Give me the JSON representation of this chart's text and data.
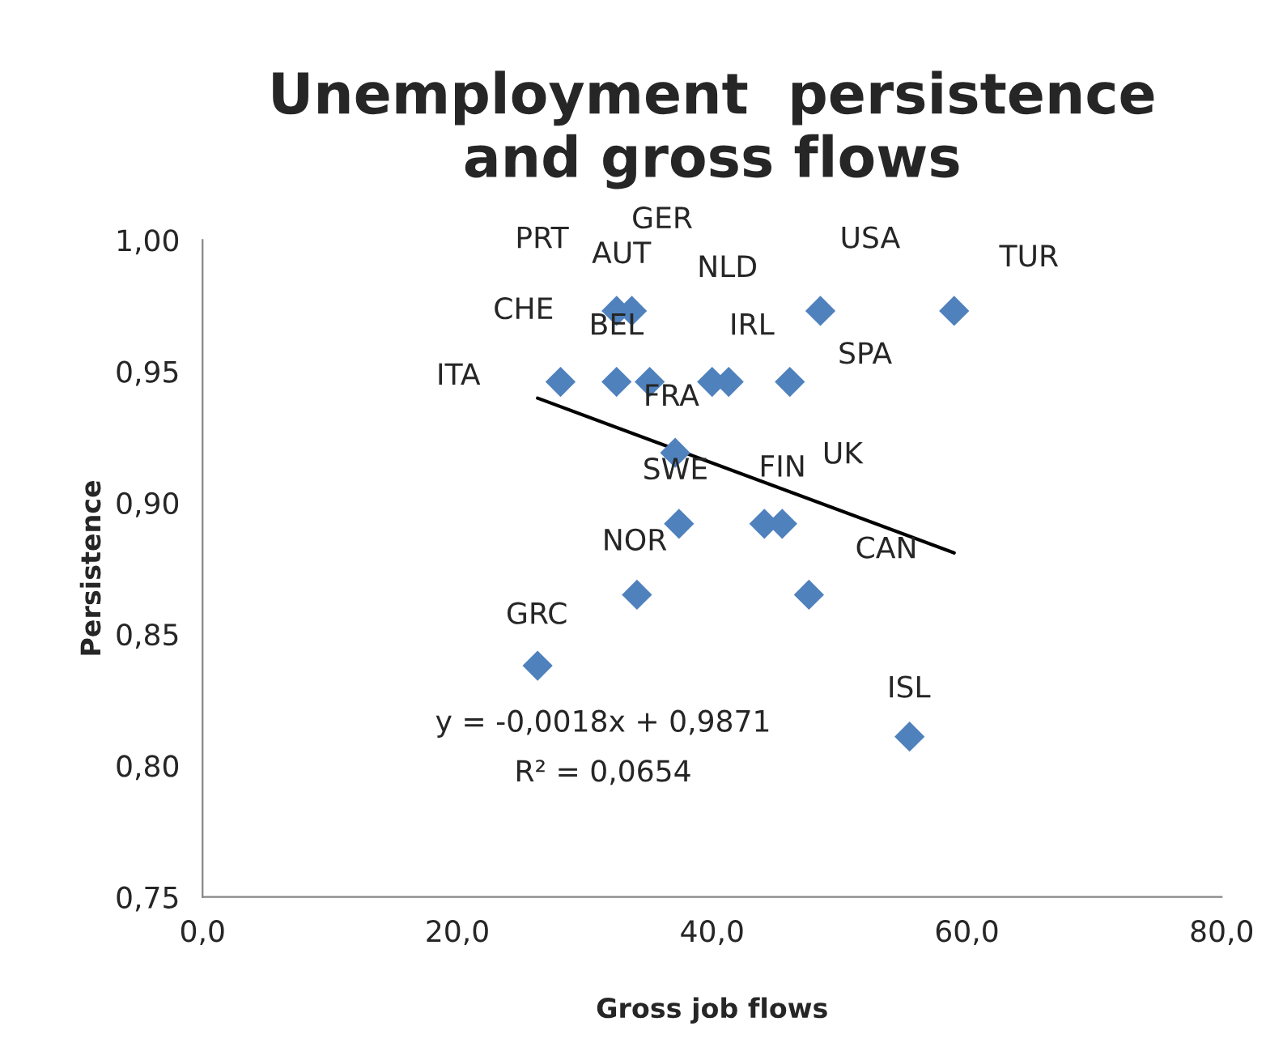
{
  "chart_data": {
    "type": "scatter",
    "title": "Unemployment  persistence\nand gross flows",
    "xlabel": "Gross job flows",
    "ylabel": "Persistence",
    "xlim": [
      0,
      80
    ],
    "ylim": [
      0.75,
      1.0
    ],
    "xticks": [
      {
        "value": 0,
        "label": "0,0"
      },
      {
        "value": 20,
        "label": "20,0"
      },
      {
        "value": 40,
        "label": "40,0"
      },
      {
        "value": 60,
        "label": "60,0"
      },
      {
        "value": 80,
        "label": "80,0"
      }
    ],
    "yticks": [
      {
        "value": 0.75,
        "label": "0,75"
      },
      {
        "value": 0.8,
        "label": "0,80"
      },
      {
        "value": 0.85,
        "label": "0,85"
      },
      {
        "value": 0.9,
        "label": "0,90"
      },
      {
        "value": 0.95,
        "label": "0,95"
      },
      {
        "value": 1.0,
        "label": "1,00"
      }
    ],
    "grid": false,
    "legend": false,
    "series": [
      {
        "color": "#4f81bd",
        "marker": "diamond",
        "x": [
          59.0,
          48.5,
          32.5,
          33.7,
          28.1,
          32.5,
          35.1,
          40.0,
          41.3,
          46.1,
          37.1,
          37.4,
          44.1,
          45.5,
          34.1,
          47.6,
          26.3,
          55.5
        ],
        "values": [
          0.973,
          0.973,
          0.973,
          0.973,
          0.946,
          0.946,
          0.946,
          0.946,
          0.946,
          0.946,
          0.919,
          0.892,
          0.892,
          0.892,
          0.865,
          0.865,
          0.838,
          0.811
        ]
      },
      {
        "type": "line",
        "color": "#000000",
        "marker": "none",
        "line_style": "solid",
        "x": [
          26.3,
          59.0
        ],
        "values": [
          0.9398,
          0.8809
        ]
      }
    ],
    "annotations": [
      "GER",
      "PRT",
      "AUT",
      "USA",
      "TUR",
      "NLD",
      "CHE",
      "BEL",
      "IRL",
      "SPA",
      "ITA",
      "FRA",
      "SWE",
      "FIN",
      "UK",
      "NOR",
      "CAN",
      "GRC",
      "ISL",
      "y = -0,0018x + 0,9871",
      "R² = 0,0654"
    ]
  }
}
